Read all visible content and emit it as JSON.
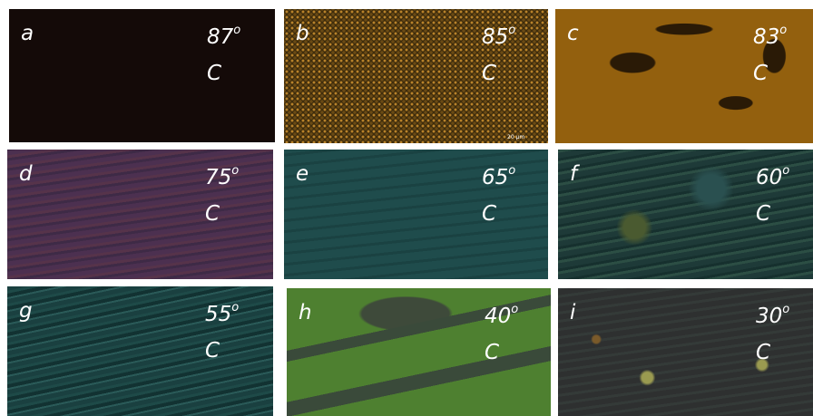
{
  "panels": [
    {
      "letter": "a",
      "temp": 87,
      "deg": "o",
      "unit": "C"
    },
    {
      "letter": "b",
      "temp": 85,
      "deg": "o",
      "unit": "C"
    },
    {
      "letter": "c",
      "temp": 83,
      "deg": "o",
      "unit": "C"
    },
    {
      "letter": "d",
      "temp": 75,
      "deg": "o",
      "unit": "C"
    },
    {
      "letter": "e",
      "temp": 65,
      "deg": "o",
      "unit": "C"
    },
    {
      "letter": "f",
      "temp": 60,
      "deg": "o",
      "unit": "C"
    },
    {
      "letter": "g",
      "temp": 55,
      "deg": "o",
      "unit": "C"
    },
    {
      "letter": "h",
      "temp": 40,
      "deg": "o",
      "unit": "C"
    },
    {
      "letter": "i",
      "temp": 30,
      "deg": "o",
      "unit": "C"
    }
  ],
  "scale_bar": "20 μm"
}
